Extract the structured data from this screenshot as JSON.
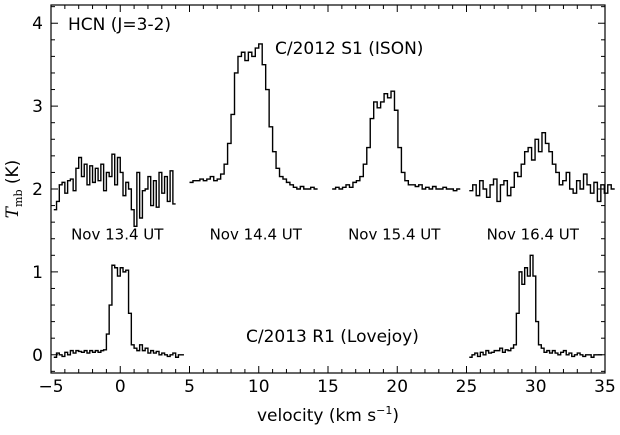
{
  "chart_data": {
    "type": "line",
    "xlabel": "velocity (km s",
    "xlabel_sup": "−1",
    "xlabel_close": ")",
    "ylabel_main": "T",
    "ylabel_sub": "mb",
    "ylabel_unit": " (K)",
    "xlim": [
      -5,
      35
    ],
    "ylim": [
      -0.22,
      4.22
    ],
    "xticks": [
      -5,
      0,
      5,
      10,
      15,
      20,
      25,
      30,
      35
    ],
    "xtick_labels": [
      "−5",
      "0",
      "5",
      "10",
      "15",
      "20",
      "25",
      "30",
      "35"
    ],
    "yticks": [
      0,
      1,
      2,
      3,
      4
    ],
    "ytick_labels": [
      "0",
      "1",
      "2",
      "3",
      "4"
    ],
    "grid": false,
    "annotations": {
      "molecule": "HCN (J=3-2)",
      "comet_ison": "C/2012 S1 (ISON)",
      "comet_lovejoy": "C/2013 R1 (Lovejoy)",
      "dates": [
        {
          "label": "Nov 13.4 UT",
          "x": 0,
          "y": 1.45
        },
        {
          "label": "Nov 14.4 UT",
          "x": 10,
          "y": 1.45
        },
        {
          "label": "Nov 15.4 UT",
          "x": 20,
          "y": 1.45
        },
        {
          "label": "Nov 16.4 UT",
          "x": 30,
          "y": 1.45
        }
      ]
    },
    "series": [
      {
        "x0": -4.8,
        "dx": 0.2,
        "y": [
          1.75,
          1.85,
          2.05,
          2.08,
          1.95,
          2.1,
          2.12,
          1.98,
          2.25,
          2.38,
          2.15,
          2.3,
          2.05,
          2.28,
          2.08,
          2.25,
          2.1,
          2.3,
          1.98,
          2.2,
          2.15,
          2.42,
          2.05,
          2.38,
          2.2,
          1.92,
          2.08,
          2.0,
          1.75,
          1.55,
          2.2,
          1.65,
          1.98,
          2.0,
          2.15,
          1.8,
          2.1,
          1.78,
          2.2,
          1.95,
          2.15,
          1.85,
          2.22,
          1.82
        ]
      },
      {
        "x0": 5.0,
        "dx": 0.25,
        "y": [
          2.08,
          2.1,
          2.1,
          2.12,
          2.1,
          2.12,
          2.15,
          2.1,
          2.12,
          2.18,
          2.3,
          2.55,
          2.9,
          3.4,
          3.6,
          3.65,
          3.55,
          3.65,
          3.6,
          3.7,
          3.75,
          3.5,
          3.2,
          2.75,
          2.45,
          2.25,
          2.15,
          2.12,
          2.08,
          2.05,
          2.02,
          2.0,
          2.03,
          2.0,
          2.0,
          2.02,
          2.0
        ]
      },
      {
        "x0": 15.3,
        "dx": 0.25,
        "y": [
          2.0,
          2.02,
          2.0,
          2.02,
          2.05,
          2.02,
          2.08,
          2.1,
          2.15,
          2.3,
          2.5,
          2.85,
          3.05,
          2.98,
          3.05,
          3.15,
          3.1,
          3.18,
          2.95,
          2.5,
          2.2,
          2.1,
          2.05,
          2.05,
          2.03,
          2.05,
          2.0,
          2.02,
          2.0,
          2.03,
          2.0,
          2.0,
          2.02,
          2.0,
          2.0,
          1.98,
          2.0
        ]
      },
      {
        "x0": 25.2,
        "dx": 0.25,
        "y": [
          1.98,
          2.05,
          1.92,
          2.1,
          2.0,
          1.9,
          2.05,
          2.12,
          1.85,
          2.05,
          2.1,
          1.92,
          2.02,
          2.2,
          2.15,
          2.3,
          2.45,
          2.5,
          2.35,
          2.6,
          2.45,
          2.68,
          2.55,
          2.45,
          2.3,
          2.2,
          2.05,
          2.1,
          2.2,
          2.0,
          1.95,
          2.1,
          2.0,
          2.18,
          2.05,
          1.95,
          2.08,
          1.85,
          2.05,
          1.95,
          2.05,
          2.0
        ]
      },
      {
        "x0": -4.8,
        "dx": 0.2,
        "y": [
          -0.03,
          0.02,
          0.0,
          -0.02,
          0.03,
          0.0,
          0.05,
          0.02,
          0.05,
          0.04,
          0.03,
          0.05,
          0.02,
          0.05,
          0.03,
          0.05,
          0.03,
          0.05,
          0.06,
          0.25,
          0.6,
          1.08,
          1.05,
          0.95,
          1.05,
          1.0,
          1.02,
          0.5,
          0.12,
          0.08,
          0.05,
          0.12,
          0.05,
          0.08,
          0.02,
          0.05,
          0.02,
          0.04,
          0.0,
          0.02,
          0.0,
          -0.02,
          0.0,
          0.02,
          -0.03,
          0.0,
          0.0
        ]
      },
      {
        "x0": 25.2,
        "dx": 0.2,
        "y": [
          -0.03,
          0.0,
          0.02,
          -0.02,
          0.03,
          0.0,
          0.05,
          0.02,
          0.03,
          0.05,
          0.05,
          0.08,
          0.03,
          0.06,
          0.05,
          0.08,
          0.12,
          0.5,
          1.0,
          0.85,
          1.05,
          0.95,
          1.2,
          0.95,
          0.4,
          0.12,
          0.08,
          0.03,
          0.05,
          0.02,
          0.05,
          0.02,
          0.0,
          0.03,
          0.05,
          0.0,
          0.02,
          -0.02,
          0.0,
          0.02,
          0.0,
          -0.02,
          0.0,
          0.0,
          -0.03,
          0.0,
          0.0,
          0.0
        ]
      }
    ]
  }
}
